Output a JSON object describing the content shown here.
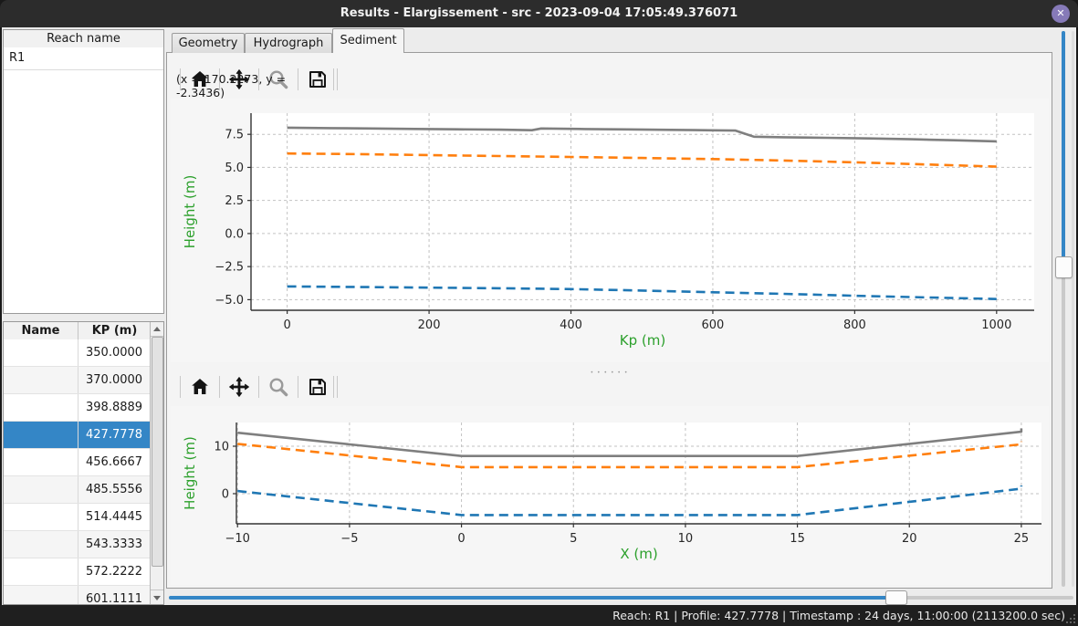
{
  "window": {
    "title": "Results - Elargissement - src - 2023-09-04 17:05:49.376071",
    "close_glyph": "✕"
  },
  "tabs": [
    {
      "label": "Geometry",
      "active": false
    },
    {
      "label": "Hydrograph",
      "active": false
    },
    {
      "label": "Sediment",
      "active": true
    }
  ],
  "sidebar": {
    "reach_header": "Reach name",
    "reaches": [
      "R1"
    ],
    "table": {
      "columns": [
        "Name",
        "KP (m)"
      ],
      "rows": [
        [
          "",
          "350.0000"
        ],
        [
          "",
          "370.0000"
        ],
        [
          "",
          "398.8889"
        ],
        [
          "",
          "427.7778"
        ],
        [
          "",
          "456.6667"
        ],
        [
          "",
          "485.5556"
        ],
        [
          "",
          "514.4445"
        ],
        [
          "",
          "543.3333"
        ],
        [
          "",
          "572.2222"
        ],
        [
          "",
          "601.1111"
        ]
      ],
      "selected_index": 3,
      "selected_kp": "427.7778"
    }
  },
  "toolbar": {
    "buttons": [
      "home",
      "pan",
      "zoom",
      "save"
    ],
    "coords_readout": "(x = 170.2273,  y = -2.3436)"
  },
  "sliders": {
    "vertical": {
      "fraction": 0.42,
      "color": "#3486c6"
    },
    "horizontal": {
      "fraction": 0.81,
      "color": "#3486c6"
    }
  },
  "status_bar": {
    "text": "Reach: R1 | Profile: 427.7778 | Timestamp : 24 days, 11:00:00 (2113200.0 sec)"
  },
  "colors": {
    "accent": "#3486c6",
    "axis_label_green": "#2ca02c",
    "series_gray": "#7f7f7f",
    "series_orange": "#ff7f0e",
    "series_blue": "#1f77b4"
  },
  "chart_data": [
    {
      "type": "line",
      "title": "",
      "xlabel": "Kp (m)",
      "ylabel": "Height (m)",
      "xlim": [
        -51,
        1053
      ],
      "ylim": [
        -5.8,
        9.1
      ],
      "grid": true,
      "axis_label_color": "#2ca02c",
      "xticks": {
        "values": [
          0,
          200,
          400,
          600,
          800,
          1000
        ],
        "labels": [
          "0",
          "200",
          "400",
          "600",
          "800",
          "1000"
        ]
      },
      "yticks": {
        "values": [
          7.5,
          5.0,
          2.5,
          0.0,
          -2.5,
          -5.0
        ],
        "labels": [
          "7.5",
          "5.0",
          "2.5",
          "0.0",
          "−2.5",
          "−5.0"
        ]
      },
      "series": [
        {
          "name": "gray-solid",
          "color": "#7f7f7f",
          "style": "solid",
          "width": 2.6,
          "points": [
            [
              0,
              8.0
            ],
            [
              60,
              7.97
            ],
            [
              120,
              7.94
            ],
            [
              180,
              7.91
            ],
            [
              240,
              7.88
            ],
            [
              300,
              7.85
            ],
            [
              345,
              7.81
            ],
            [
              358,
              7.94
            ],
            [
              420,
              7.9
            ],
            [
              480,
              7.87
            ],
            [
              540,
              7.84
            ],
            [
              600,
              7.8
            ],
            [
              632,
              7.78
            ],
            [
              645,
              7.55
            ],
            [
              658,
              7.32
            ],
            [
              700,
              7.28
            ],
            [
              760,
              7.24
            ],
            [
              820,
              7.19
            ],
            [
              880,
              7.13
            ],
            [
              940,
              7.05
            ],
            [
              1000,
              6.97
            ]
          ]
        },
        {
          "name": "orange-dashed",
          "color": "#ff7f0e",
          "style": "dashed",
          "width": 2.6,
          "points": [
            [
              0,
              6.05
            ],
            [
              100,
              6.0
            ],
            [
              200,
              5.93
            ],
            [
              300,
              5.86
            ],
            [
              400,
              5.79
            ],
            [
              500,
              5.71
            ],
            [
              600,
              5.63
            ],
            [
              700,
              5.52
            ],
            [
              800,
              5.38
            ],
            [
              900,
              5.22
            ],
            [
              1000,
              5.06
            ]
          ]
        },
        {
          "name": "blue-dashed",
          "color": "#1f77b4",
          "style": "dashed",
          "width": 2.6,
          "points": [
            [
              0,
              -4.0
            ],
            [
              100,
              -4.04
            ],
            [
              200,
              -4.09
            ],
            [
              300,
              -4.14
            ],
            [
              400,
              -4.2
            ],
            [
              500,
              -4.31
            ],
            [
              600,
              -4.44
            ],
            [
              700,
              -4.56
            ],
            [
              800,
              -4.7
            ],
            [
              900,
              -4.83
            ],
            [
              1000,
              -4.95
            ]
          ]
        }
      ]
    },
    {
      "type": "line",
      "title": "",
      "xlabel": "X (m)",
      "ylabel": "Height (m)",
      "xlim": [
        -10.05,
        25.9
      ],
      "ylim": [
        -6.35,
        15.0
      ],
      "grid": true,
      "axis_label_color": "#2ca02c",
      "xticks": {
        "values": [
          -10,
          -5,
          0,
          5,
          10,
          15,
          20,
          25
        ],
        "labels": [
          "−10",
          "−5",
          "0",
          "5",
          "10",
          "15",
          "20",
          "25"
        ]
      },
      "yticks": {
        "values": [
          0,
          10
        ],
        "labels": [
          "0",
          "10"
        ]
      },
      "series": [
        {
          "name": "gray-solid",
          "color": "#7f7f7f",
          "style": "solid",
          "width": 2.6,
          "points": [
            [
              -10,
              12.85
            ],
            [
              0,
              7.95
            ],
            [
              15,
              7.95
            ],
            [
              25,
              13.05
            ],
            [
              25,
              13.75
            ]
          ]
        },
        {
          "name": "orange-dashed",
          "color": "#ff7f0e",
          "style": "dashed",
          "width": 2.6,
          "points": [
            [
              -10,
              10.5
            ],
            [
              0,
              5.6
            ],
            [
              15,
              5.6
            ],
            [
              25,
              10.4
            ],
            [
              25,
              11.0
            ]
          ]
        },
        {
          "name": "blue-dashed",
          "color": "#1f77b4",
          "style": "dashed",
          "width": 2.6,
          "points": [
            [
              -10,
              0.55
            ],
            [
              0,
              -4.5
            ],
            [
              15,
              -4.5
            ],
            [
              25,
              1.05
            ],
            [
              25,
              1.7
            ]
          ]
        }
      ]
    }
  ]
}
